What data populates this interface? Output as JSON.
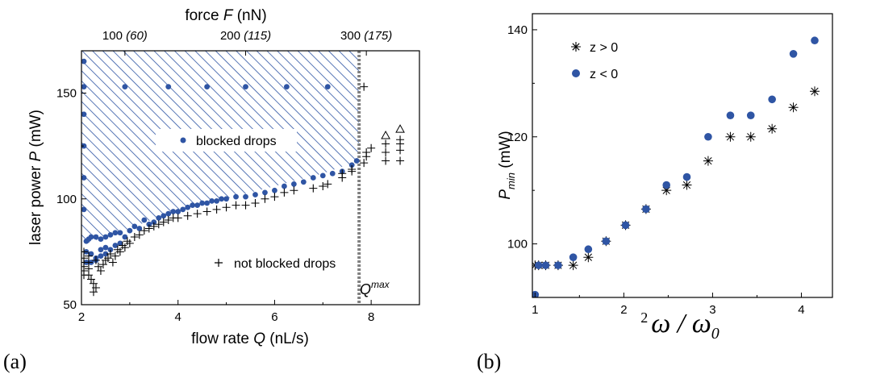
{
  "colors": {
    "blue": "#2f55a4",
    "black": "#000000",
    "grey": "#808080",
    "hatch": "#2f55a4"
  },
  "panel_labels": {
    "a": "(a)",
    "b": "(b)"
  },
  "chart_data": [
    {
      "type": "scatter",
      "panel": "(a)",
      "xlabel_prefix": "flow rate ",
      "xlabel_var": "Q",
      "xlabel_suffix": " (nL/s)",
      "ylabel_prefix": "laser power ",
      "ylabel_var": "P",
      "ylabel_suffix": " (mW)",
      "top_axis_label_prefix": "force ",
      "top_axis_label_var": "F",
      "top_axis_label_suffix": " (nN)",
      "xlim": [
        2,
        9
      ],
      "ylim": [
        50,
        170
      ],
      "xticks": [
        "2",
        "4",
        "6",
        "8"
      ],
      "yticks": [
        "50",
        "100",
        "150"
      ],
      "top_ticks": [
        {
          "x": 2.9,
          "label": "100",
          "sub": "(60)"
        },
        {
          "x": 5.4,
          "label": "200",
          "sub": "(115)"
        },
        {
          "x": 7.9,
          "label": "300",
          "sub": "(175)"
        }
      ],
      "qmax_line_x": 7.75,
      "qmax_label_main": "Q",
      "qmax_label_sup": "max",
      "legend": [
        {
          "label": "blocked drops",
          "marker": "dot"
        },
        {
          "label": "not blocked drops",
          "marker": "plus"
        }
      ],
      "hatched_region": [
        [
          2,
          70
        ],
        [
          2,
          170
        ],
        [
          7.75,
          170
        ],
        [
          7.75,
          118
        ],
        [
          7,
          112
        ],
        [
          6,
          106
        ],
        [
          5,
          100
        ],
        [
          4,
          95
        ],
        [
          3,
          86
        ],
        [
          2.5,
          82
        ],
        [
          2,
          78
        ]
      ],
      "series": [
        {
          "name": "blocked drops",
          "marker": "dot",
          "points": [
            [
              2.05,
              165
            ],
            [
              2.05,
              153
            ],
            [
              2.05,
              140
            ],
            [
              2.05,
              125
            ],
            [
              2.05,
              110
            ],
            [
              2.05,
              95
            ],
            [
              2.9,
              153
            ],
            [
              3.8,
              153
            ],
            [
              4.6,
              153
            ],
            [
              5.4,
              153
            ],
            [
              6.25,
              153
            ],
            [
              7.1,
              153
            ],
            [
              2.1,
              80
            ],
            [
              2.15,
              81
            ],
            [
              2.2,
              82
            ],
            [
              2.3,
              82
            ],
            [
              2.4,
              81
            ],
            [
              2.5,
              82
            ],
            [
              2.6,
              83
            ],
            [
              2.7,
              84
            ],
            [
              2.8,
              84
            ],
            [
              2.1,
              75
            ],
            [
              2.2,
              74
            ],
            [
              2.3,
              72
            ],
            [
              2.4,
              73
            ],
            [
              2.5,
              74
            ],
            [
              2.6,
              76
            ],
            [
              2.7,
              78
            ],
            [
              2.8,
              79
            ],
            [
              2.1,
              70
            ],
            [
              2.2,
              70
            ],
            [
              2.3,
              71
            ],
            [
              2.4,
              76
            ],
            [
              2.5,
              77
            ],
            [
              2.9,
              82
            ],
            [
              3.0,
              85
            ],
            [
              3.3,
              90
            ],
            [
              3.1,
              87
            ],
            [
              3.2,
              86
            ],
            [
              3.4,
              88
            ],
            [
              3.5,
              89
            ],
            [
              3.6,
              91
            ],
            [
              3.7,
              92
            ],
            [
              3.8,
              93
            ],
            [
              3.9,
              94
            ],
            [
              4.0,
              94
            ],
            [
              4.1,
              95
            ],
            [
              4.2,
              96
            ],
            [
              4.3,
              97
            ],
            [
              4.4,
              97
            ],
            [
              4.5,
              98
            ],
            [
              4.6,
              98
            ],
            [
              4.7,
              99
            ],
            [
              4.8,
              99
            ],
            [
              4.9,
              100
            ],
            [
              5.0,
              100
            ],
            [
              5.2,
              101
            ],
            [
              5.4,
              101
            ],
            [
              5.6,
              102
            ],
            [
              5.8,
              103
            ],
            [
              6.0,
              104
            ],
            [
              6.2,
              106
            ],
            [
              6.4,
              107
            ],
            [
              6.6,
              108
            ],
            [
              6.8,
              110
            ],
            [
              7.0,
              111
            ],
            [
              7.2,
              112
            ],
            [
              7.4,
              113
            ],
            [
              7.6,
              116
            ],
            [
              7.7,
              118
            ]
          ]
        },
        {
          "name": "not blocked drops",
          "marker": "plus",
          "points": [
            [
              2.05,
              75
            ],
            [
              2.05,
              72
            ],
            [
              2.05,
              70
            ],
            [
              2.05,
              68
            ],
            [
              2.05,
              66
            ],
            [
              2.05,
              64
            ],
            [
              2.15,
              73
            ],
            [
              2.15,
              70
            ],
            [
              2.15,
              67
            ],
            [
              2.15,
              64
            ],
            [
              2.2,
              62
            ],
            [
              2.25,
              60
            ],
            [
              2.3,
              58
            ],
            [
              2.25,
              56
            ],
            [
              2.3,
              71
            ],
            [
              2.35,
              68
            ],
            [
              2.4,
              66
            ],
            [
              2.45,
              69
            ],
            [
              2.5,
              71
            ],
            [
              2.55,
              72
            ],
            [
              2.6,
              74
            ],
            [
              2.65,
              70
            ],
            [
              2.7,
              73
            ],
            [
              2.75,
              76
            ],
            [
              2.8,
              75
            ],
            [
              2.85,
              78
            ],
            [
              2.9,
              77
            ],
            [
              2.95,
              80
            ],
            [
              3.0,
              79
            ],
            [
              3.1,
              82
            ],
            [
              3.2,
              83
            ],
            [
              3.3,
              85
            ],
            [
              3.4,
              86
            ],
            [
              3.5,
              87
            ],
            [
              3.6,
              88
            ],
            [
              3.7,
              89
            ],
            [
              3.8,
              90
            ],
            [
              3.9,
              91
            ],
            [
              4.0,
              91
            ],
            [
              4.2,
              92
            ],
            [
              4.4,
              93
            ],
            [
              4.6,
              94
            ],
            [
              4.8,
              95
            ],
            [
              5.0,
              96
            ],
            [
              5.2,
              97
            ],
            [
              5.4,
              97
            ],
            [
              5.6,
              98
            ],
            [
              5.8,
              100
            ],
            [
              6.0,
              101
            ],
            [
              6.2,
              103
            ],
            [
              6.4,
              104
            ],
            [
              6.8,
              105
            ],
            [
              7.0,
              106
            ],
            [
              7.1,
              107
            ],
            [
              7.4,
              110
            ],
            [
              7.4,
              112
            ],
            [
              7.6,
              113
            ],
            [
              7.6,
              114
            ],
            [
              7.85,
              153
            ],
            [
              7.85,
              117
            ],
            [
              7.9,
              120
            ],
            [
              7.9,
              122
            ],
            [
              8.0,
              124
            ],
            [
              8.3,
              118
            ],
            [
              8.3,
              122
            ],
            [
              8.3,
              126
            ],
            [
              8.6,
              118
            ],
            [
              8.6,
              123
            ],
            [
              8.6,
              126
            ],
            [
              8.6,
              128
            ]
          ]
        },
        {
          "name": "",
          "marker": "triangle",
          "points": [
            [
              8.3,
              130
            ],
            [
              8.6,
              133
            ]
          ]
        }
      ]
    },
    {
      "type": "scatter",
      "panel": "(b)",
      "xlabel": "ω / ω",
      "xlabel_sub": "0",
      "xlabel_pre_sup": "2",
      "ylabel": "P",
      "ylabel_sub": "min",
      "ylabel_suffix": " (mW)",
      "xlim": [
        0.97,
        4.35
      ],
      "ylim": [
        90,
        143
      ],
      "xticks": [
        "1",
        "2",
        "3",
        "4"
      ],
      "yticks": [
        "100",
        "120",
        "140"
      ],
      "legend": [
        {
          "label": "z > 0",
          "marker": "asterisk"
        },
        {
          "label": "z < 0",
          "marker": "dot"
        }
      ],
      "series": [
        {
          "name": "z > 0",
          "marker": "asterisk",
          "points": [
            [
              1.0,
              96
            ],
            [
              1.04,
              96
            ],
            [
              1.12,
              96
            ],
            [
              1.26,
              96
            ],
            [
              1.43,
              96
            ],
            [
              1.6,
              97.5
            ],
            [
              1.8,
              100.5
            ],
            [
              2.02,
              103.5
            ],
            [
              2.25,
              106.5
            ],
            [
              2.48,
              110
            ],
            [
              2.71,
              111
            ],
            [
              2.95,
              115.5
            ],
            [
              3.2,
              120
            ],
            [
              3.43,
              120
            ],
            [
              3.67,
              121.5
            ],
            [
              3.91,
              125.5
            ],
            [
              4.15,
              128.5
            ]
          ]
        },
        {
          "name": "z < 0",
          "marker": "dot",
          "points": [
            [
              1.0,
              90.5
            ],
            [
              1.04,
              96
            ],
            [
              1.12,
              96
            ],
            [
              1.26,
              96
            ],
            [
              1.43,
              97.5
            ],
            [
              1.6,
              99
            ],
            [
              1.8,
              100.5
            ],
            [
              2.02,
              103.5
            ],
            [
              2.25,
              106.5
            ],
            [
              2.48,
              111
            ],
            [
              2.71,
              112.5
            ],
            [
              2.95,
              120
            ],
            [
              3.2,
              124
            ],
            [
              3.43,
              124
            ],
            [
              3.67,
              127
            ],
            [
              3.91,
              135.5
            ],
            [
              4.15,
              138
            ]
          ]
        }
      ]
    }
  ]
}
